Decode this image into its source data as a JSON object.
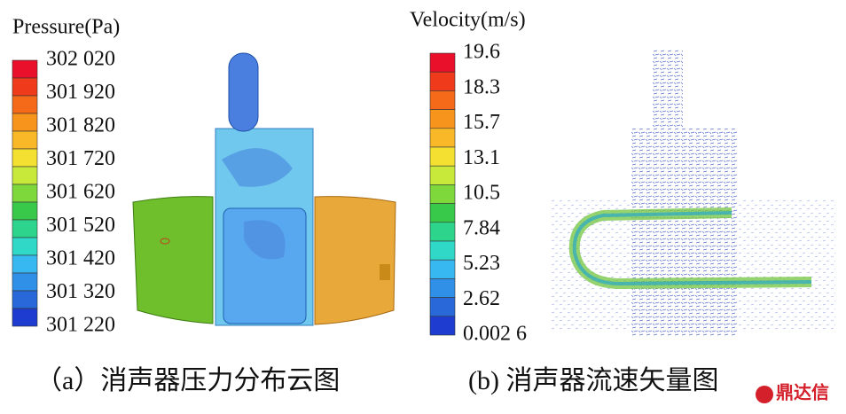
{
  "panel_a": {
    "legend_title": "Pressure(Pa)",
    "legend_labels": [
      "302 020",
      "301 920",
      "301 820",
      "301 720",
      "301 620",
      "301 520",
      "301 420",
      "301 320",
      "301 220"
    ],
    "caption": "（a）消声器压力分布云图"
  },
  "panel_b": {
    "legend_title": "Velocity(m/s)",
    "legend_labels": [
      "19.6",
      "18.3",
      "15.7",
      "13.1",
      "10.5",
      "7.84",
      "5.23",
      "2.62",
      "0.002 6"
    ],
    "caption": "(b) 消声器流速矢量图"
  },
  "watermark": "鼎达信"
}
